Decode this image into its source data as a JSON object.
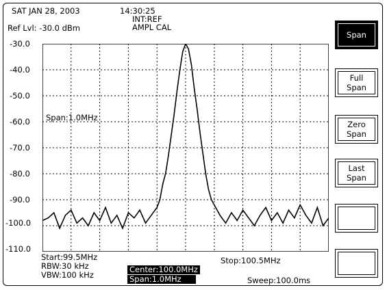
{
  "header": {
    "date": "SAT JAN 28,  2003",
    "time": "14:30:25",
    "ref_source": "INT:REF",
    "ampl_cal": "AMPL  CAL",
    "ref_level": "Ref  Lvl: -30.0 dBm"
  },
  "trace_label": "Span:1.0MHz",
  "footer": {
    "start": "Start:99.5MHz",
    "rbw": "RBW:30 kHz",
    "vbw": "VBW:100 kHz",
    "center": "Center:100.0MHz",
    "span": "Span:1.0MHz",
    "stop": "Stop:100.5MHz",
    "sweep": "Sweep:100.0ms"
  },
  "softkeys": [
    {
      "label": "Span",
      "active": true
    },
    {
      "label": "Full\nSpan",
      "active": false
    },
    {
      "label": "Zero\nSpan",
      "active": false
    },
    {
      "label": "Last\nSpan",
      "active": false
    },
    {
      "label": "",
      "active": false
    },
    {
      "label": "",
      "active": false
    }
  ],
  "y_ticks": [
    "-30.0",
    "-40.0",
    "-50.0",
    "-60.0",
    "-70.0",
    "-80.0",
    "-90.0",
    "-100.0",
    "-110.0"
  ],
  "chart_data": {
    "type": "line",
    "x_range_mhz": [
      99.5,
      100.5
    ],
    "ylim": [
      -110,
      -30
    ],
    "units": "dBm",
    "grid": true,
    "series": [
      {
        "x_mhz": [
          99.5,
          99.52,
          99.54,
          99.56,
          99.58,
          99.6,
          99.62,
          99.64,
          99.66,
          99.68,
          99.7,
          99.72,
          99.74,
          99.76,
          99.78,
          99.8,
          99.82,
          99.84,
          99.86,
          99.88,
          99.9,
          99.91,
          99.92,
          99.93,
          99.94,
          99.95,
          99.96,
          99.97,
          99.98,
          99.99,
          100.0,
          100.01,
          100.02,
          100.03,
          100.04,
          100.05,
          100.06,
          100.07,
          100.08,
          100.09,
          100.1,
          100.12,
          100.14,
          100.16,
          100.18,
          100.2,
          100.22,
          100.24,
          100.26,
          100.28,
          100.3,
          100.32,
          100.34,
          100.36,
          100.38,
          100.4,
          100.42,
          100.44,
          100.46,
          100.48,
          100.5
        ],
        "y_dbm": [
          -98,
          -97,
          -95,
          -101,
          -96,
          -94,
          -99,
          -97,
          -100,
          -95,
          -98,
          -93,
          -99,
          -96,
          -101,
          -95,
          -97,
          -94,
          -99,
          -96,
          -93,
          -90,
          -84,
          -80,
          -73,
          -65,
          -57,
          -48,
          -40,
          -33,
          -30,
          -32,
          -38,
          -47,
          -55,
          -64,
          -72,
          -80,
          -86,
          -90,
          -92,
          -96,
          -99,
          -95,
          -98,
          -94,
          -97,
          -100,
          -96,
          -93,
          -98,
          -95,
          -99,
          -94,
          -97,
          -92,
          -96,
          -99,
          -93,
          -100,
          -97
        ]
      }
    ]
  }
}
